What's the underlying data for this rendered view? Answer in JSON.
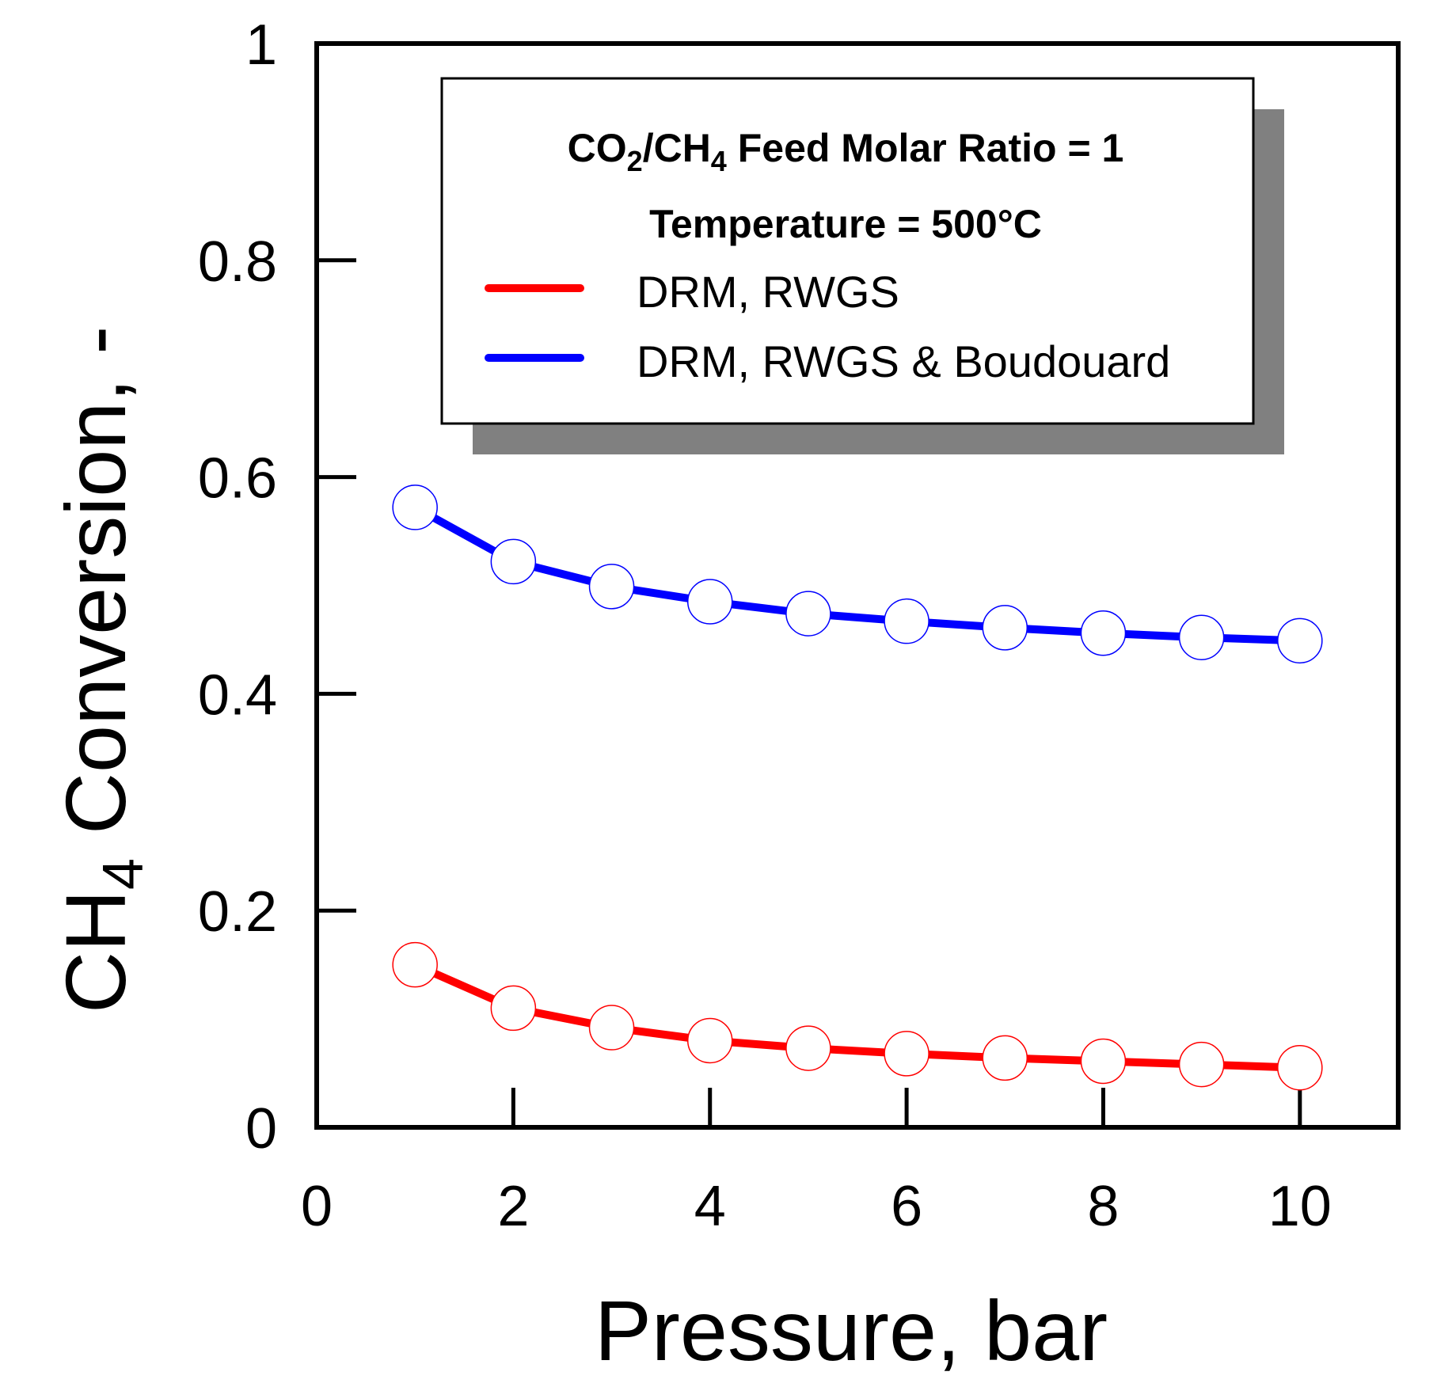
{
  "chart_data": {
    "type": "line",
    "title": "",
    "xlabel": "Pressure, bar",
    "ylabel": {
      "main": "CH",
      "sub": "4",
      "rest": " Conversion, -"
    },
    "xlim": [
      0,
      11
    ],
    "ylim": [
      0,
      1
    ],
    "x_ticks": [
      0,
      2,
      4,
      6,
      8,
      10
    ],
    "x_tick_labels": [
      "0",
      "2",
      "4",
      "6",
      "8",
      "10"
    ],
    "y_ticks": [
      0,
      0.2,
      0.4,
      0.6,
      0.8,
      1
    ],
    "y_tick_labels": [
      "0",
      "0.2",
      "0.4",
      "0.6",
      "0.8",
      "1"
    ],
    "grid": false,
    "x": [
      1,
      2,
      3,
      4,
      5,
      6,
      7,
      8,
      9,
      10
    ],
    "series": [
      {
        "name": "DRM, RWGS",
        "color": "#ff0000",
        "marker": "open-circle",
        "values": [
          0.15,
          0.11,
          0.092,
          0.08,
          0.073,
          0.068,
          0.064,
          0.061,
          0.058,
          0.055
        ]
      },
      {
        "name": "DRM, RWGS & Boudouard",
        "color": "#0000ff",
        "marker": "open-circle",
        "values": [
          0.572,
          0.522,
          0.499,
          0.485,
          0.474,
          0.467,
          0.461,
          0.456,
          0.452,
          0.449
        ]
      }
    ],
    "legend": {
      "placement": "top-right",
      "header_line1": {
        "a": "CO",
        "a_sub": "2",
        "b": "/CH",
        "b_sub": "4",
        "c": " Feed Molar Ratio = 1"
      },
      "header_line2": "Temperature = 500°C"
    }
  }
}
